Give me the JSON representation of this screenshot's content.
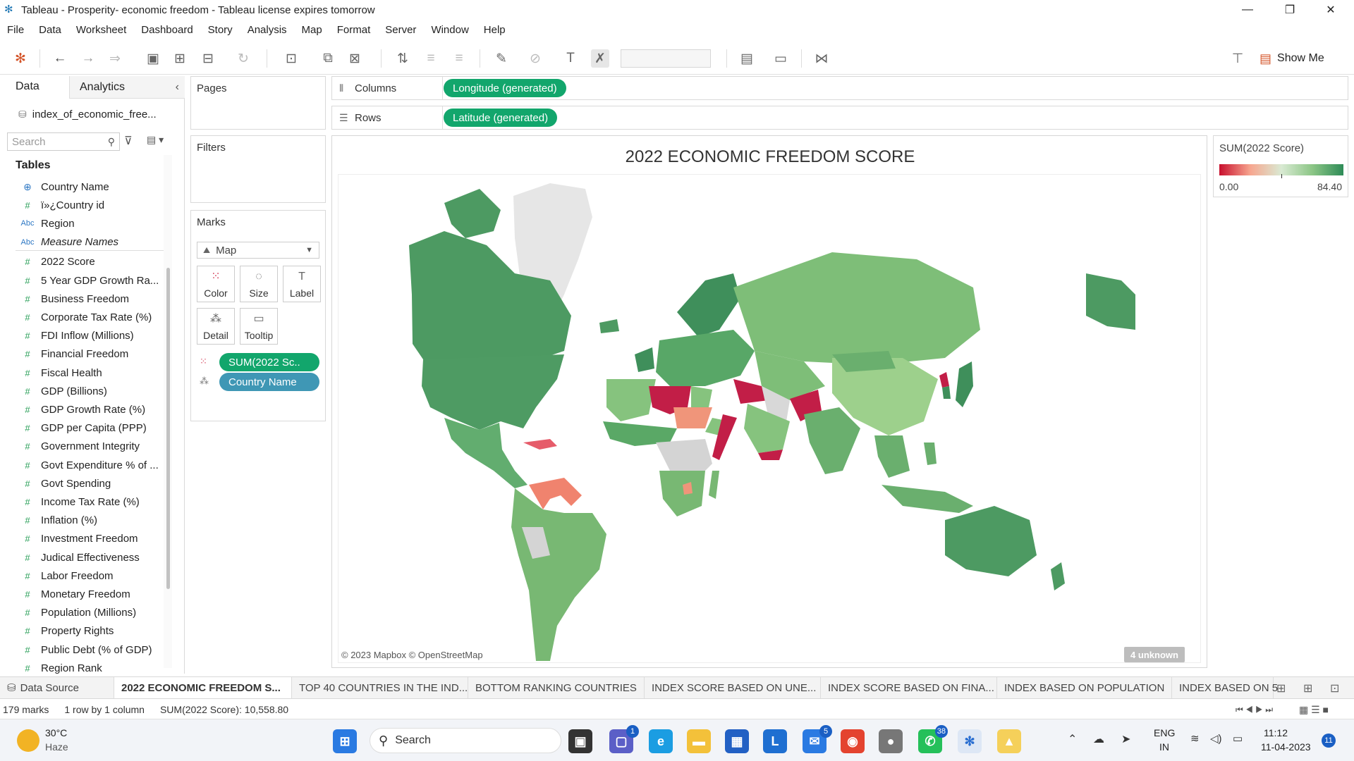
{
  "window": {
    "title": "Tableau - Prosperity- economic freedom - Tableau license expires tomorrow",
    "minimize": "—",
    "restore": "❐",
    "close": "✕"
  },
  "menu": [
    "File",
    "Data",
    "Worksheet",
    "Dashboard",
    "Story",
    "Analysis",
    "Map",
    "Format",
    "Server",
    "Window",
    "Help"
  ],
  "toolbar": {
    "show_me": "Show Me"
  },
  "data_pane": {
    "tab_data": "Data",
    "tab_analytics": "Analytics",
    "datasource": "index_of_economic_free...",
    "search_placeholder": "Search",
    "tables_heading": "Tables",
    "fields": [
      {
        "icon": "globe",
        "label": "Country Name"
      },
      {
        "icon": "#",
        "label": "ï»¿Country id"
      },
      {
        "icon": "Abc",
        "label": "Region"
      },
      {
        "icon": "Abc",
        "label": "Measure Names"
      },
      {
        "icon": "#",
        "label": "2022 Score"
      },
      {
        "icon": "#",
        "label": "5 Year GDP Growth Ra..."
      },
      {
        "icon": "#",
        "label": "Business Freedom"
      },
      {
        "icon": "#",
        "label": "Corporate Tax Rate (%)"
      },
      {
        "icon": "#",
        "label": "FDI Inflow (Millions)"
      },
      {
        "icon": "#",
        "label": "Financial Freedom"
      },
      {
        "icon": "#",
        "label": "Fiscal Health"
      },
      {
        "icon": "#",
        "label": "GDP (Billions)"
      },
      {
        "icon": "#",
        "label": "GDP Growth Rate (%)"
      },
      {
        "icon": "#",
        "label": "GDP per Capita (PPP)"
      },
      {
        "icon": "#",
        "label": "Government Integrity"
      },
      {
        "icon": "#",
        "label": "Govt Expenditure % of ..."
      },
      {
        "icon": "#",
        "label": "Govt Spending"
      },
      {
        "icon": "#",
        "label": "Income Tax Rate (%)"
      },
      {
        "icon": "#",
        "label": "Inflation (%)"
      },
      {
        "icon": "#",
        "label": "Investment Freedom"
      },
      {
        "icon": "#",
        "label": "Judical Effectiveness"
      },
      {
        "icon": "#",
        "label": "Labor Freedom"
      },
      {
        "icon": "#",
        "label": "Monetary Freedom"
      },
      {
        "icon": "#",
        "label": "Population (Millions)"
      },
      {
        "icon": "#",
        "label": "Property Rights"
      },
      {
        "icon": "#",
        "label": "Public Debt (% of GDP)"
      },
      {
        "icon": "#",
        "label": "Region Rank"
      }
    ]
  },
  "shelves": {
    "pages": "Pages",
    "filters": "Filters",
    "marks": "Marks",
    "mark_type": "Map",
    "mark_buttons": [
      "Color",
      "Size",
      "Label",
      "Detail",
      "Tooltip"
    ],
    "marks_pills": [
      "SUM(2022 Sc..",
      "Country Name"
    ],
    "columns_label": "Columns",
    "columns_pill": "Longitude (generated)",
    "rows_label": "Rows",
    "rows_pill": "Latitude (generated)"
  },
  "view": {
    "title": "2022 ECONOMIC FREEDOM SCORE",
    "attribution": "© 2023 Mapbox © OpenStreetMap",
    "unknown_badge": "4 unknown"
  },
  "legend": {
    "title": "SUM(2022 Score)",
    "min": "0.00",
    "max": "84.40",
    "color_low": "#c8102e",
    "color_high": "#2e8b57"
  },
  "sheet_tabs": {
    "data_source": "Data Source",
    "tabs": [
      "2022 ECONOMIC FREEDOM S...",
      "TOP 40 COUNTRIES IN THE IND...",
      "BOTTOM RANKING COUNTRIES",
      "INDEX SCORE BASED ON UNE...",
      "INDEX SCORE BASED ON FINA...",
      "INDEX BASED ON POPULATION",
      "INDEX BASED ON 5"
    ]
  },
  "status": {
    "marks": "179 marks",
    "rows_cols": "1 row by 1 column",
    "sum": "SUM(2022 Score): 10,558.80"
  },
  "taskbar": {
    "weather_temp": "30°C",
    "weather_desc": "Haze",
    "search": "Search",
    "badges": {
      "teams": "1",
      "mail": "5",
      "whatsapp": "38"
    },
    "lang_top": "ENG",
    "lang_bottom": "IN",
    "time": "11:12",
    "date": "11-04-2023",
    "notif": "11"
  }
}
